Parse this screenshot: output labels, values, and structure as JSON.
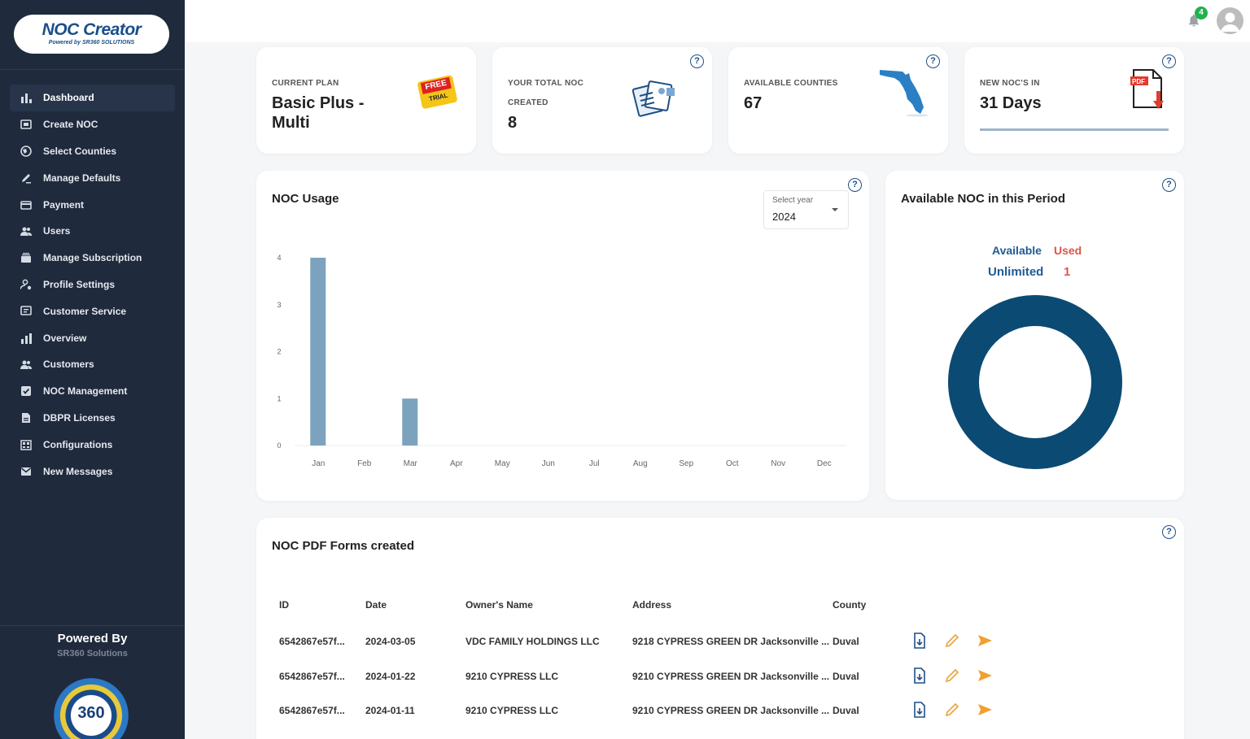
{
  "brand": {
    "name": "NOC Creator",
    "tagline": "Powered by SR360 SOLUTIONS"
  },
  "sidebar": {
    "items": [
      {
        "label": "Dashboard",
        "icon": "bar-chart-icon",
        "active": true
      },
      {
        "label": "Create NOC",
        "icon": "document-icon"
      },
      {
        "label": "Select Counties",
        "icon": "globe-icon"
      },
      {
        "label": "Manage Defaults",
        "icon": "edit-icon"
      },
      {
        "label": "Payment",
        "icon": "credit-card-icon"
      },
      {
        "label": "Users",
        "icon": "users-icon"
      },
      {
        "label": "Manage Subscription",
        "icon": "subscription-icon"
      },
      {
        "label": "Profile Settings",
        "icon": "profile-settings-icon"
      },
      {
        "label": "Customer Service",
        "icon": "support-icon"
      },
      {
        "label": "Overview",
        "icon": "chart-icon"
      },
      {
        "label": "Customers",
        "icon": "customers-icon"
      },
      {
        "label": "NOC Management",
        "icon": "checkbox-icon"
      },
      {
        "label": "DBPR Licenses",
        "icon": "license-icon"
      },
      {
        "label": "Configurations",
        "icon": "config-icon"
      },
      {
        "label": "New Messages",
        "icon": "mail-icon"
      }
    ],
    "powered_by": "Powered By",
    "powered_by_company": "SR360 Solutions"
  },
  "topbar": {
    "notification_count": "4"
  },
  "stats": {
    "plan": {
      "label": "CURRENT PLAN",
      "value": "Basic Plus - Multi",
      "badge_line1": "FREE",
      "badge_line2": "TRIAL"
    },
    "total_noc": {
      "label": "YOUR TOTAL NOC CREATED",
      "value": "8"
    },
    "counties": {
      "label": "AVAILABLE COUNTIES",
      "value": "67"
    },
    "new_nocs": {
      "label": "NEW NOC'S IN",
      "value": "31 Days",
      "progress_fraction": 1.0
    }
  },
  "usage": {
    "title": "NOC Usage",
    "select_label": "Select year",
    "select_value": "2024"
  },
  "chart_data": {
    "type": "bar",
    "categories": [
      "Jan",
      "Feb",
      "Mar",
      "Apr",
      "May",
      "Jun",
      "Jul",
      "Aug",
      "Sep",
      "Oct",
      "Nov",
      "Dec"
    ],
    "values": [
      4,
      0,
      1,
      0,
      0,
      0,
      0,
      0,
      0,
      0,
      0,
      0
    ],
    "yticks": [
      "0",
      "1",
      "2",
      "3",
      "4"
    ],
    "ylim": [
      0,
      4
    ],
    "bar_color": "#7ba3bd"
  },
  "period": {
    "title": "Available NOC in this Period",
    "available_label": "Available",
    "used_label": "Used",
    "available_value": "Unlimited",
    "used_value": "1",
    "available_color": "#1f5a96",
    "used_color": "#e0534a",
    "donut_color": "#0b4a73"
  },
  "forms": {
    "title": "NOC PDF Forms created",
    "columns": [
      "ID",
      "Date",
      "Owner's Name",
      "Address",
      "County"
    ],
    "rows": [
      [
        "6542867e57f...",
        "2024-03-05",
        "VDC FAMILY HOLDINGS LLC",
        "9218 CYPRESS GREEN DR Jacksonville ...",
        "Duval"
      ],
      [
        "6542867e57f...",
        "2024-01-22",
        "9210 CYPRESS LLC",
        "9210 CYPRESS GREEN DR Jacksonville ...",
        "Duval"
      ],
      [
        "6542867e57f...",
        "2024-01-11",
        "9210 CYPRESS LLC",
        "9210 CYPRESS GREEN DR Jacksonville ...",
        "Duval"
      ]
    ]
  }
}
